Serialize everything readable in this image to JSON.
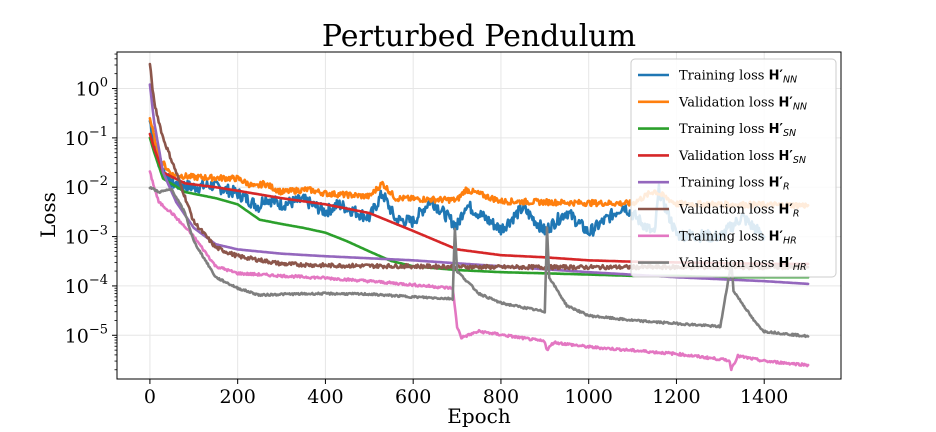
{
  "chart_data": {
    "type": "line",
    "title": "Perturbed Pendulum",
    "xlabel": "Epoch",
    "ylabel": "Loss",
    "xlim": [
      -75,
      1575
    ],
    "ylim": [
      1.3e-06,
      5.5
    ],
    "yscale": "log",
    "grid": true,
    "legend_position": "top-right",
    "x_ticks": [
      0,
      200,
      400,
      600,
      800,
      1000,
      1200,
      1400
    ],
    "x_tick_labels": [
      "0",
      "200",
      "400",
      "600",
      "800",
      "1000",
      "1200",
      "1400"
    ],
    "y_ticks": [
      1,
      0.1,
      0.01,
      0.001,
      0.0001,
      1e-05
    ],
    "y_tick_labels": [
      {
        "base": "10",
        "exp": "0"
      },
      {
        "base": "10",
        "exp": "−1"
      },
      {
        "base": "10",
        "exp": "−2"
      },
      {
        "base": "10",
        "exp": "−3"
      },
      {
        "base": "10",
        "exp": "−4"
      },
      {
        "base": "10",
        "exp": "−5"
      }
    ],
    "series": [
      {
        "name": "Training loss",
        "model": "H′",
        "sub": "NN",
        "color": "#1f77b4",
        "points": [
          [
            0,
            0.22
          ],
          [
            20,
            0.03
          ],
          [
            50,
            0.012
          ],
          [
            100,
            0.01
          ],
          [
            140,
            0.011
          ],
          [
            200,
            0.0075
          ],
          [
            250,
            0.004
          ],
          [
            260,
            0.0062
          ],
          [
            300,
            0.0045
          ],
          [
            350,
            0.0055
          ],
          [
            400,
            0.0032
          ],
          [
            430,
            0.0045
          ],
          [
            500,
            0.0024
          ],
          [
            530,
            0.0075
          ],
          [
            560,
            0.0022
          ],
          [
            600,
            0.002
          ],
          [
            640,
            0.0055
          ],
          [
            700,
            0.0016
          ],
          [
            720,
            0.0045
          ],
          [
            800,
            0.0014
          ],
          [
            850,
            0.0038
          ],
          [
            900,
            0.0013
          ],
          [
            950,
            0.0032
          ],
          [
            1000,
            0.0012
          ],
          [
            1080,
            0.0042
          ],
          [
            1150,
            0.0011
          ],
          [
            1160,
            0.0085
          ],
          [
            1200,
            0.0011
          ],
          [
            1300,
            0.001
          ],
          [
            1350,
            0.0025
          ],
          [
            1400,
            0.001
          ]
        ],
        "noise": 0.25
      },
      {
        "name": "Validation loss",
        "model": "H′",
        "sub": "NN",
        "color": "#ff7f0e",
        "points": [
          [
            0,
            0.25
          ],
          [
            20,
            0.04
          ],
          [
            50,
            0.018
          ],
          [
            100,
            0.016
          ],
          [
            200,
            0.015
          ],
          [
            240,
            0.01
          ],
          [
            260,
            0.012
          ],
          [
            300,
            0.008
          ],
          [
            360,
            0.009
          ],
          [
            400,
            0.0075
          ],
          [
            500,
            0.0065
          ],
          [
            530,
            0.012
          ],
          [
            560,
            0.006
          ],
          [
            600,
            0.0058
          ],
          [
            700,
            0.0055
          ],
          [
            720,
            0.009
          ],
          [
            800,
            0.0052
          ],
          [
            900,
            0.005
          ],
          [
            1000,
            0.0048
          ],
          [
            1100,
            0.0047
          ],
          [
            1150,
            0.0085
          ],
          [
            1200,
            0.0046
          ],
          [
            1300,
            0.0045
          ],
          [
            1400,
            0.0044
          ],
          [
            1500,
            0.0043
          ]
        ],
        "noise": 0.12
      },
      {
        "name": "Training loss",
        "model": "H′",
        "sub": "SN",
        "color": "#2ca02c",
        "points": [
          [
            0,
            0.1
          ],
          [
            10,
            0.05
          ],
          [
            30,
            0.015
          ],
          [
            80,
            0.008
          ],
          [
            150,
            0.006
          ],
          [
            200,
            0.0045
          ],
          [
            250,
            0.0022
          ],
          [
            300,
            0.0018
          ],
          [
            350,
            0.0015
          ],
          [
            400,
            0.0012
          ],
          [
            450,
            0.0008
          ],
          [
            500,
            0.0005
          ],
          [
            550,
            0.00032
          ],
          [
            600,
            0.00025
          ],
          [
            700,
            0.00021
          ],
          [
            800,
            0.00019
          ],
          [
            900,
            0.00018
          ],
          [
            1000,
            0.00017
          ],
          [
            1100,
            0.00016
          ],
          [
            1200,
            0.00016
          ],
          [
            1300,
            0.00015
          ],
          [
            1400,
            0.00015
          ],
          [
            1500,
            0.00015
          ]
        ],
        "noise": 0.0
      },
      {
        "name": "Validation loss",
        "model": "H′",
        "sub": "SN",
        "color": "#d62728",
        "points": [
          [
            0,
            0.12
          ],
          [
            10,
            0.06
          ],
          [
            30,
            0.02
          ],
          [
            80,
            0.012
          ],
          [
            150,
            0.01
          ],
          [
            200,
            0.0085
          ],
          [
            300,
            0.006
          ],
          [
            400,
            0.0045
          ],
          [
            500,
            0.003
          ],
          [
            600,
            0.0013
          ],
          [
            700,
            0.00055
          ],
          [
            800,
            0.00042
          ],
          [
            900,
            0.00038
          ],
          [
            1000,
            0.00033
          ],
          [
            1100,
            0.00031
          ],
          [
            1200,
            0.0003
          ],
          [
            1300,
            0.00029
          ],
          [
            1400,
            0.00028
          ],
          [
            1500,
            0.00028
          ]
        ],
        "noise": 0.0
      },
      {
        "name": "Training loss",
        "model": "H′",
        "sub": "R",
        "color": "#9467bd",
        "points": [
          [
            0,
            1.2
          ],
          [
            10,
            0.2
          ],
          [
            30,
            0.02
          ],
          [
            60,
            0.005
          ],
          [
            100,
            0.0015
          ],
          [
            150,
            0.0007
          ],
          [
            200,
            0.00055
          ],
          [
            300,
            0.00045
          ],
          [
            400,
            0.0004
          ],
          [
            600,
            0.00033
          ],
          [
            800,
            0.00025
          ],
          [
            1000,
            0.00019
          ],
          [
            1200,
            0.00015
          ],
          [
            1400,
            0.000125
          ],
          [
            1500,
            0.00011
          ]
        ],
        "noise": 0.0
      },
      {
        "name": "Validation loss",
        "model": "H′",
        "sub": "R",
        "color": "#8c564b",
        "points": [
          [
            0,
            3.0
          ],
          [
            10,
            0.5
          ],
          [
            30,
            0.1
          ],
          [
            60,
            0.02
          ],
          [
            100,
            0.002
          ],
          [
            150,
            0.0006
          ],
          [
            200,
            0.0004
          ],
          [
            300,
            0.00028
          ],
          [
            400,
            0.00026
          ],
          [
            600,
            0.00025
          ],
          [
            800,
            0.00024
          ],
          [
            1000,
            0.00024
          ],
          [
            1200,
            0.00024
          ],
          [
            1400,
            0.00024
          ],
          [
            1500,
            0.00024
          ]
        ],
        "noise": 0.08
      },
      {
        "name": "Training loss",
        "model": "H′",
        "sub": "HR",
        "color": "#e377c2",
        "points": [
          [
            0,
            0.02
          ],
          [
            20,
            0.005
          ],
          [
            50,
            0.003
          ],
          [
            100,
            0.001
          ],
          [
            150,
            0.00025
          ],
          [
            200,
            0.00018
          ],
          [
            300,
            0.00016
          ],
          [
            400,
            0.000145
          ],
          [
            500,
            0.000125
          ],
          [
            690,
            9e-05
          ],
          [
            700,
            1.5e-05
          ],
          [
            710,
            9e-06
          ],
          [
            750,
            1.2e-05
          ],
          [
            900,
            7.5e-06
          ],
          [
            905,
            5e-06
          ],
          [
            920,
            7.2e-06
          ],
          [
            1000,
            5.8e-06
          ],
          [
            1200,
            4.2e-06
          ],
          [
            1320,
            3.1e-06
          ],
          [
            1325,
            2.1e-06
          ],
          [
            1340,
            3.8e-06
          ],
          [
            1400,
            3e-06
          ],
          [
            1500,
            2.5e-06
          ]
        ],
        "noise": 0.05
      },
      {
        "name": "Validation loss",
        "model": "H′",
        "sub": "HR",
        "color": "#7f7f7f",
        "points": [
          [
            0,
            0.01
          ],
          [
            20,
            0.008
          ],
          [
            50,
            0.009
          ],
          [
            80,
            0.003
          ],
          [
            100,
            0.0008
          ],
          [
            150,
            0.00015
          ],
          [
            200,
            9e-05
          ],
          [
            250,
            6.5e-05
          ],
          [
            300,
            6.8e-05
          ],
          [
            400,
            7e-05
          ],
          [
            500,
            6.8e-05
          ],
          [
            600,
            6e-05
          ],
          [
            690,
            5.5e-05
          ],
          [
            695,
            0.0015
          ],
          [
            700,
            0.0002
          ],
          [
            750,
            7e-05
          ],
          [
            800,
            4.5e-05
          ],
          [
            900,
            3e-05
          ],
          [
            905,
            0.0015
          ],
          [
            910,
            0.00015
          ],
          [
            950,
            4e-05
          ],
          [
            1000,
            2.5e-05
          ],
          [
            1100,
            2e-05
          ],
          [
            1300,
            1.5e-05
          ],
          [
            1325,
            0.0003
          ],
          [
            1330,
            8e-05
          ],
          [
            1380,
            1.8e-05
          ],
          [
            1400,
            1.2e-05
          ],
          [
            1500,
            9.5e-06
          ]
        ],
        "noise": 0.04
      }
    ]
  }
}
